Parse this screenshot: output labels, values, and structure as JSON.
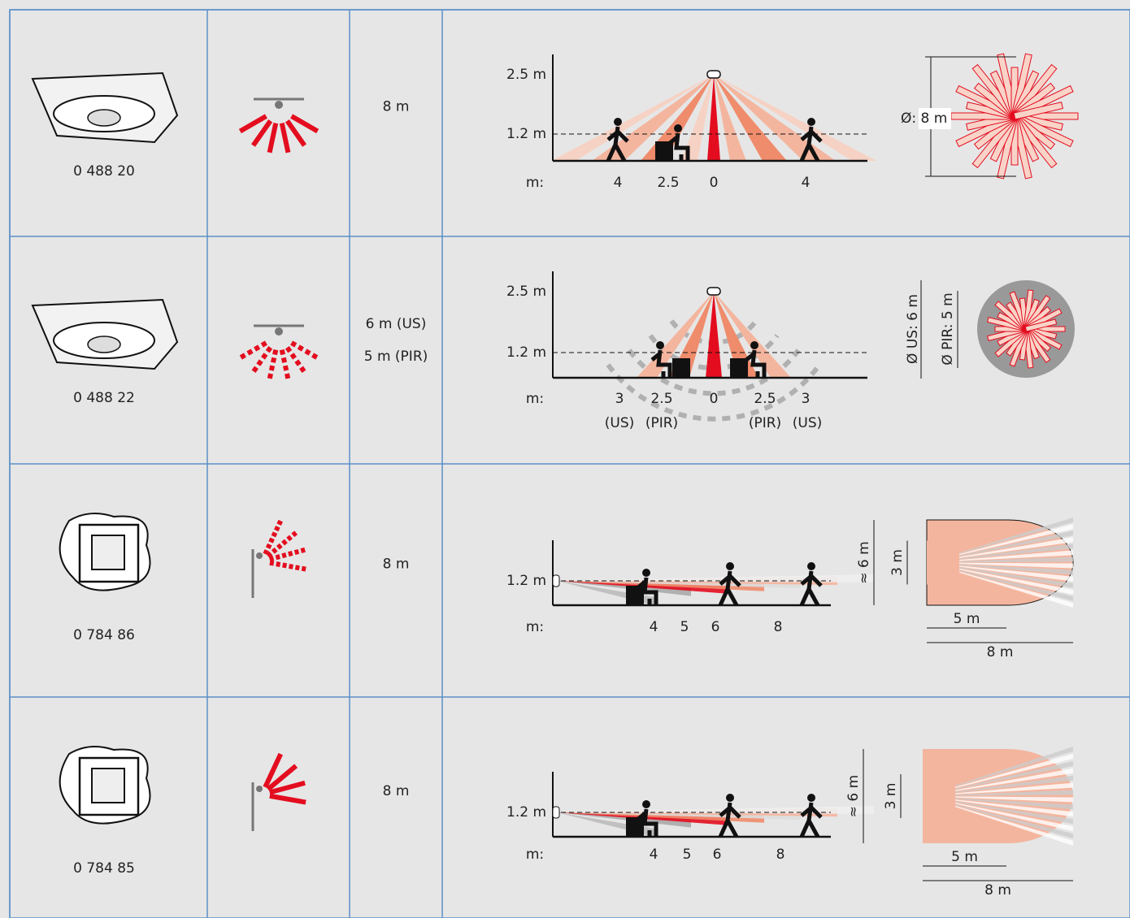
{
  "table": {
    "rows": [
      {
        "code": "0 488 20",
        "range": [
          "8 m"
        ],
        "side": {
          "heights": [
            "2.5 m",
            "1.2 m"
          ],
          "axis_label": "m:",
          "ticks": [
            "4",
            "2.5",
            "0",
            "4"
          ]
        },
        "top": {
          "labels": [
            "Ø: 8 m"
          ]
        }
      },
      {
        "code": "0 488 22",
        "range": [
          "6 m (US)",
          "5 m (PIR)"
        ],
        "side": {
          "heights": [
            "2.5 m",
            "1.2 m"
          ],
          "axis_label": "m:",
          "ticks": [
            "3",
            "2.5",
            "0",
            "2.5",
            "3"
          ],
          "tick_notes": [
            "(US)",
            "(PIR)",
            "(PIR)",
            "(US)"
          ]
        },
        "top": {
          "labels": [
            "Ø US: 6 m",
            "Ø PIR: 5 m"
          ]
        }
      },
      {
        "code": "0 784 86",
        "range": [
          "8 m"
        ],
        "side": {
          "heights": [
            "1.2 m"
          ],
          "axis_label": "m:",
          "ticks": [
            "4",
            "5",
            "6",
            "8"
          ]
        },
        "top": {
          "labels": [
            "≈ 6 m",
            "3 m",
            "5 m",
            "8 m"
          ]
        }
      },
      {
        "code": "0 784 85",
        "range": [
          "8 m"
        ],
        "side": {
          "heights": [
            "1.2 m"
          ],
          "axis_label": "m:",
          "ticks": [
            "4",
            "5",
            "6",
            "8"
          ]
        },
        "top": {
          "labels": [
            "≈ 6 m",
            "3 m",
            "5 m",
            "8 m"
          ]
        }
      }
    ]
  }
}
